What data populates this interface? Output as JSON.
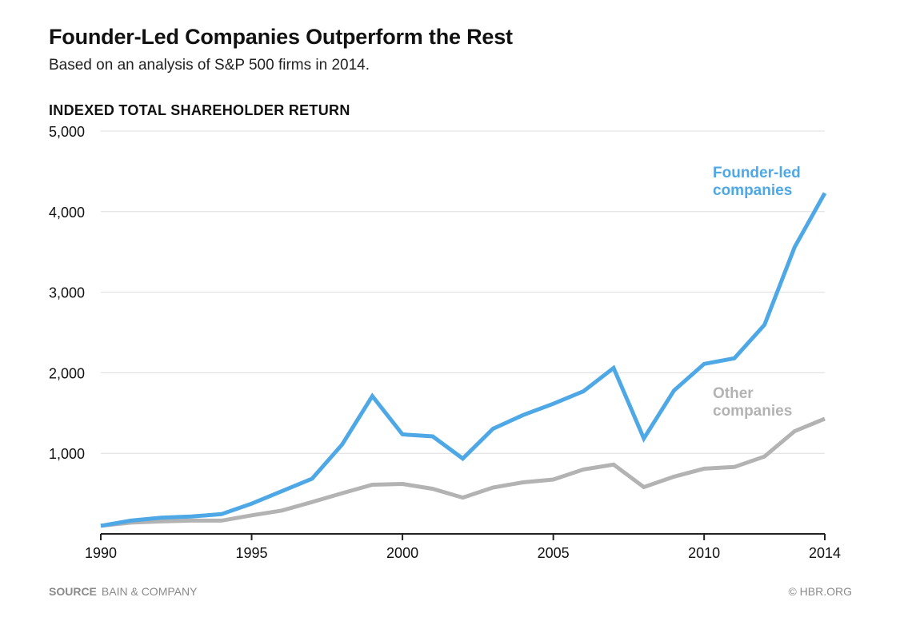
{
  "header": {
    "title": "Founder-Led Companies Outperform the Rest",
    "subtitle": "Based on an analysis of S&P 500 firms in 2014."
  },
  "footer": {
    "source_label": "SOURCE",
    "source_text": "BAIN & COMPANY",
    "credit": "© HBR.ORG"
  },
  "colors": {
    "founder_series": "#4fa8e6",
    "other_series": "#b3b3b3",
    "gridline": "#dddddd",
    "axis": "#222222"
  },
  "chart_data": {
    "type": "line",
    "ylabel": "INDEXED TOTAL SHAREHOLDER RETURN",
    "xlabel": "",
    "ylim": [
      0,
      5000
    ],
    "xlim": [
      1990,
      2014
    ],
    "yticks": [
      1000,
      2000,
      3000,
      4000,
      5000
    ],
    "ytick_labels": [
      "1,000",
      "2,000",
      "3,000",
      "4,000",
      "5,000"
    ],
    "xticks": [
      1990,
      1995,
      2000,
      2005,
      2010,
      2014
    ],
    "xtick_labels": [
      "1990",
      "1995",
      "2000",
      "2005",
      "2010",
      "2014"
    ],
    "grid": true,
    "x": [
      1990,
      1991,
      1992,
      1993,
      1994,
      1995,
      1996,
      1997,
      1998,
      1999,
      2000,
      2001,
      2002,
      2003,
      2004,
      2005,
      2006,
      2007,
      2008,
      2009,
      2010,
      2011,
      2012,
      2013,
      2014
    ],
    "series": [
      {
        "name": "Founder-led companies",
        "label_lines": [
          "Founder-led",
          "companies"
        ],
        "values": [
          100,
          165,
          200,
          215,
          245,
          375,
          530,
          685,
          1110,
          1710,
          1235,
          1210,
          935,
          1305,
          1475,
          1615,
          1770,
          2060,
          1185,
          1780,
          2110,
          2180,
          2595,
          3560,
          4230
        ]
      },
      {
        "name": "Other companies",
        "label_lines": [
          "Other",
          "companies"
        ],
        "values": [
          100,
          140,
          155,
          165,
          165,
          230,
          290,
          395,
          505,
          610,
          620,
          560,
          450,
          575,
          640,
          675,
          800,
          860,
          580,
          710,
          810,
          830,
          960,
          1275,
          1430
        ]
      }
    ]
  }
}
